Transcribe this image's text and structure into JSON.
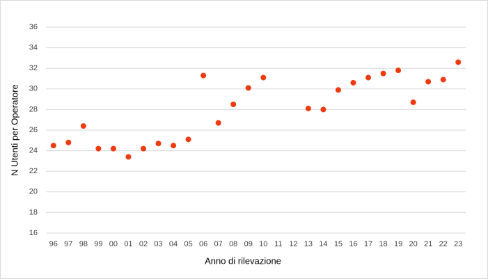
{
  "chart_data": {
    "type": "scatter",
    "x_label": "Anno di rilevazione",
    "y_label": "N Utenti per Operatore",
    "categories": [
      "96",
      "97",
      "98",
      "99",
      "00",
      "01",
      "02",
      "03",
      "04",
      "05",
      "06",
      "07",
      "08",
      "09",
      "10",
      "11",
      "12",
      "13",
      "14",
      "15",
      "16",
      "17",
      "18",
      "19",
      "20",
      "21",
      "22",
      "23"
    ],
    "values": [
      24.5,
      24.8,
      26.4,
      24.2,
      24.2,
      23.4,
      24.2,
      24.7,
      24.5,
      25.1,
      31.3,
      26.7,
      28.5,
      30.1,
      31.1,
      null,
      null,
      28.1,
      28.0,
      29.9,
      30.6,
      31.1,
      31.5,
      31.8,
      28.7,
      30.7,
      30.9,
      32.6
    ],
    "color": "#ee3a0f",
    "ylim": [
      16,
      36
    ],
    "yticks": [
      16,
      18,
      20,
      22,
      24,
      26,
      28,
      30,
      32,
      34,
      36
    ],
    "grid": true
  }
}
